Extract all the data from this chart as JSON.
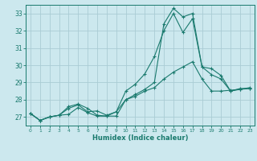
{
  "xlabel": "Humidex (Indice chaleur)",
  "background_color": "#cce8ee",
  "grid_color": "#aaccd4",
  "line_color": "#1a7a6e",
  "x_values": [
    0,
    1,
    2,
    3,
    4,
    5,
    6,
    7,
    8,
    9,
    10,
    11,
    12,
    13,
    14,
    15,
    16,
    17,
    18,
    19,
    20,
    21,
    22,
    23
  ],
  "line1": [
    27.2,
    26.8,
    27.0,
    27.1,
    27.15,
    27.55,
    27.25,
    27.05,
    27.05,
    27.3,
    28.0,
    28.2,
    28.5,
    28.7,
    29.2,
    29.6,
    29.9,
    30.2,
    29.2,
    28.5,
    28.5,
    28.55,
    28.6,
    28.65
  ],
  "line2": [
    27.2,
    26.8,
    27.0,
    27.1,
    27.5,
    27.7,
    27.3,
    27.35,
    27.1,
    27.3,
    28.5,
    28.9,
    29.5,
    30.5,
    32.0,
    33.0,
    31.9,
    32.7,
    29.9,
    29.8,
    29.4,
    28.5,
    28.6,
    28.7
  ],
  "line3": [
    27.2,
    26.8,
    27.0,
    27.1,
    27.6,
    27.75,
    27.5,
    27.1,
    27.05,
    27.05,
    28.0,
    28.3,
    28.6,
    29.0,
    32.4,
    33.3,
    32.8,
    33.0,
    29.9,
    29.45,
    29.2,
    28.5,
    28.65,
    28.65
  ],
  "xlim": [
    -0.5,
    23.5
  ],
  "ylim": [
    26.5,
    33.5
  ],
  "yticks": [
    27,
    28,
    29,
    30,
    31,
    32,
    33
  ],
  "xticks": [
    0,
    1,
    2,
    3,
    4,
    5,
    6,
    7,
    8,
    9,
    10,
    11,
    12,
    13,
    14,
    15,
    16,
    17,
    18,
    19,
    20,
    21,
    22,
    23
  ]
}
